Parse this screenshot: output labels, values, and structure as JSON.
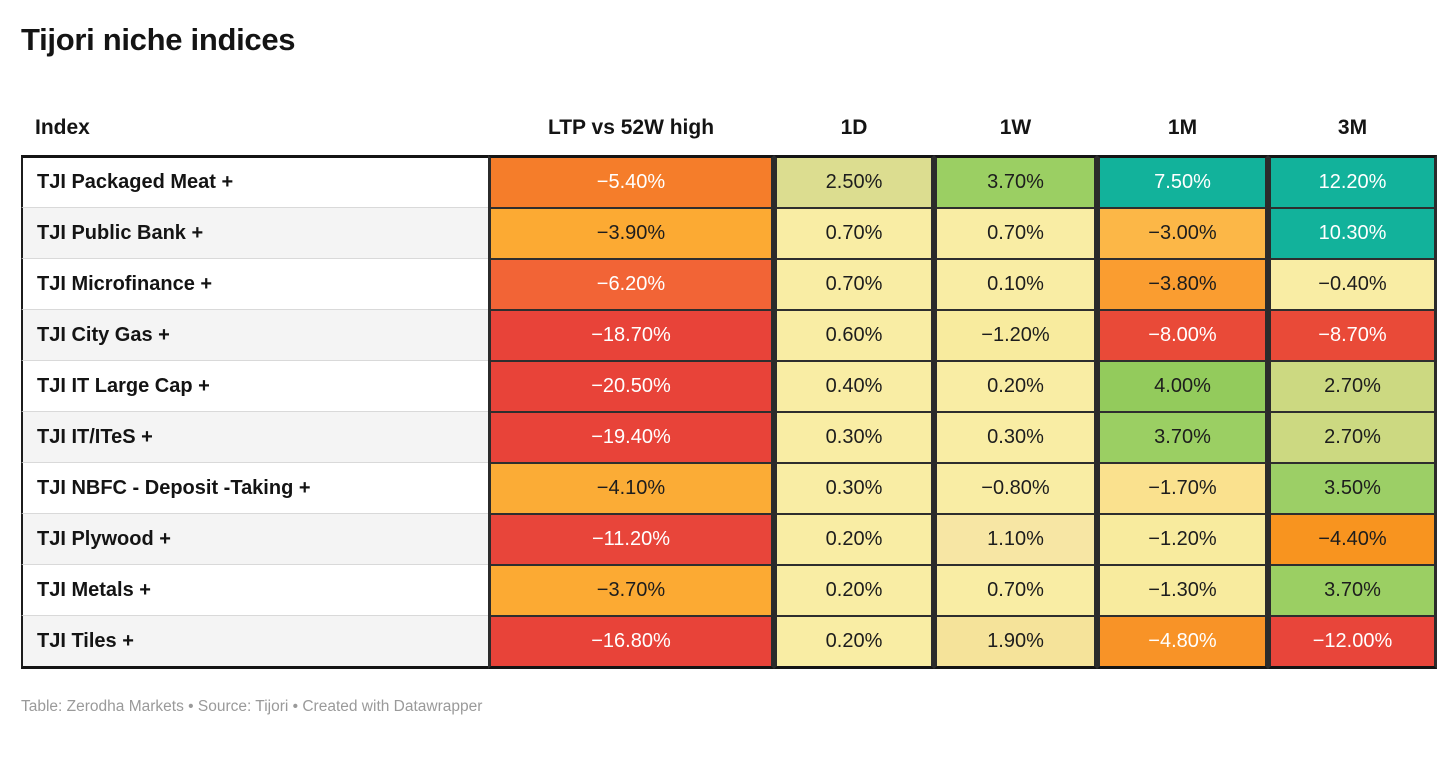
{
  "title": "Tijori niche indices",
  "footer": {
    "credits": "Table: Zerodha Markets • Source: Tijori • Created with Datawrapper"
  },
  "table": {
    "headers": [
      {
        "label": "Index"
      },
      {
        "label": "LTP vs 52W high"
      },
      {
        "label": "1D"
      },
      {
        "label": "1W"
      },
      {
        "label": "1M"
      },
      {
        "label": "3M"
      }
    ],
    "rows": [
      {
        "index": "TJI Packaged Meat +",
        "cells": [
          {
            "v": "−5.40%",
            "bg": "#f57d2a",
            "fg": "#ffffff"
          },
          {
            "v": "2.50%",
            "bg": "#dcdd90",
            "fg": "#1d1d1d"
          },
          {
            "v": "3.70%",
            "bg": "#9bcf63",
            "fg": "#1d1d1d"
          },
          {
            "v": "7.50%",
            "bg": "#12b29b",
            "fg": "#ffffff"
          },
          {
            "v": "12.20%",
            "bg": "#12b29b",
            "fg": "#ffffff"
          }
        ]
      },
      {
        "index": "TJI Public Bank +",
        "cells": [
          {
            "v": "−3.90%",
            "bg": "#fcaa33",
            "fg": "#1d1d1d"
          },
          {
            "v": "0.70%",
            "bg": "#f9eda4",
            "fg": "#1d1d1d"
          },
          {
            "v": "0.70%",
            "bg": "#f9eda4",
            "fg": "#1d1d1d"
          },
          {
            "v": "−3.00%",
            "bg": "#fcb747",
            "fg": "#1d1d1d"
          },
          {
            "v": "10.30%",
            "bg": "#12b29b",
            "fg": "#ffffff"
          }
        ]
      },
      {
        "index": "TJI Microfinance +",
        "cells": [
          {
            "v": "−6.20%",
            "bg": "#f26436",
            "fg": "#ffffff"
          },
          {
            "v": "0.70%",
            "bg": "#f9eda4",
            "fg": "#1d1d1d"
          },
          {
            "v": "0.10%",
            "bg": "#f9eda4",
            "fg": "#1d1d1d"
          },
          {
            "v": "−3.80%",
            "bg": "#fa9d30",
            "fg": "#1d1d1d"
          },
          {
            "v": "−0.40%",
            "bg": "#f9eda4",
            "fg": "#1d1d1d"
          }
        ]
      },
      {
        "index": "TJI City Gas +",
        "cells": [
          {
            "v": "−18.70%",
            "bg": "#e84339",
            "fg": "#ffffff"
          },
          {
            "v": "0.60%",
            "bg": "#f9eda4",
            "fg": "#1d1d1d"
          },
          {
            "v": "−1.20%",
            "bg": "#f8eb9e",
            "fg": "#1d1d1d"
          },
          {
            "v": "−8.00%",
            "bg": "#e94a38",
            "fg": "#ffffff"
          },
          {
            "v": "−8.70%",
            "bg": "#e94a38",
            "fg": "#ffffff"
          }
        ]
      },
      {
        "index": "TJI IT Large Cap +",
        "cells": [
          {
            "v": "−20.50%",
            "bg": "#e84339",
            "fg": "#ffffff"
          },
          {
            "v": "0.40%",
            "bg": "#f9eda4",
            "fg": "#1d1d1d"
          },
          {
            "v": "0.20%",
            "bg": "#f9eda4",
            "fg": "#1d1d1d"
          },
          {
            "v": "4.00%",
            "bg": "#93cb5c",
            "fg": "#1d1d1d"
          },
          {
            "v": "2.70%",
            "bg": "#ccd981",
            "fg": "#1d1d1d"
          }
        ]
      },
      {
        "index": "TJI IT/ITeS +",
        "cells": [
          {
            "v": "−19.40%",
            "bg": "#e84339",
            "fg": "#ffffff"
          },
          {
            "v": "0.30%",
            "bg": "#f9eda4",
            "fg": "#1d1d1d"
          },
          {
            "v": "0.30%",
            "bg": "#f9eda4",
            "fg": "#1d1d1d"
          },
          {
            "v": "3.70%",
            "bg": "#9bcf63",
            "fg": "#1d1d1d"
          },
          {
            "v": "2.70%",
            "bg": "#ccd981",
            "fg": "#1d1d1d"
          }
        ]
      },
      {
        "index": "TJI NBFC - Deposit -Taking +",
        "cells": [
          {
            "v": "−4.10%",
            "bg": "#fbac36",
            "fg": "#1d1d1d"
          },
          {
            "v": "0.30%",
            "bg": "#f9eda4",
            "fg": "#1d1d1d"
          },
          {
            "v": "−0.80%",
            "bg": "#f9eda4",
            "fg": "#1d1d1d"
          },
          {
            "v": "−1.70%",
            "bg": "#fae18e",
            "fg": "#1d1d1d"
          },
          {
            "v": "3.50%",
            "bg": "#9ccf66",
            "fg": "#1d1d1d"
          }
        ]
      },
      {
        "index": "TJI Plywood +",
        "cells": [
          {
            "v": "−11.20%",
            "bg": "#e8453a",
            "fg": "#ffffff"
          },
          {
            "v": "0.20%",
            "bg": "#f9eda4",
            "fg": "#1d1d1d"
          },
          {
            "v": "1.10%",
            "bg": "#f7e6a4",
            "fg": "#1d1d1d"
          },
          {
            "v": "−1.20%",
            "bg": "#f8eb9e",
            "fg": "#1d1d1d"
          },
          {
            "v": "−4.40%",
            "bg": "#f8941f",
            "fg": "#1d1d1d"
          }
        ]
      },
      {
        "index": "TJI Metals +",
        "cells": [
          {
            "v": "−3.70%",
            "bg": "#fcaa33",
            "fg": "#1d1d1d"
          },
          {
            "v": "0.20%",
            "bg": "#f9eda4",
            "fg": "#1d1d1d"
          },
          {
            "v": "0.70%",
            "bg": "#f9eda4",
            "fg": "#1d1d1d"
          },
          {
            "v": "−1.30%",
            "bg": "#f8eb9e",
            "fg": "#1d1d1d"
          },
          {
            "v": "3.70%",
            "bg": "#9bcf63",
            "fg": "#1d1d1d"
          }
        ]
      },
      {
        "index": "TJI Tiles +",
        "cells": [
          {
            "v": "−16.80%",
            "bg": "#e84339",
            "fg": "#ffffff"
          },
          {
            "v": "0.20%",
            "bg": "#f9eda4",
            "fg": "#1d1d1d"
          },
          {
            "v": "1.90%",
            "bg": "#f5e39a",
            "fg": "#1d1d1d"
          },
          {
            "v": "−4.80%",
            "bg": "#f89327",
            "fg": "#ffffff"
          },
          {
            "v": "−12.00%",
            "bg": "#e8453a",
            "fg": "#ffffff"
          }
        ]
      }
    ]
  },
  "chart_data": {
    "type": "table",
    "title": "Tijori niche indices",
    "columns": [
      "Index",
      "LTP vs 52W high",
      "1D",
      "1W",
      "1M",
      "3M"
    ],
    "value_unit": "percent",
    "rows": [
      [
        "TJI Packaged Meat +",
        -5.4,
        2.5,
        3.7,
        7.5,
        12.2
      ],
      [
        "TJI Public Bank +",
        -3.9,
        0.7,
        0.7,
        -3.0,
        10.3
      ],
      [
        "TJI Microfinance +",
        -6.2,
        0.7,
        0.1,
        -3.8,
        -0.4
      ],
      [
        "TJI City Gas +",
        -18.7,
        0.6,
        -1.2,
        -8.0,
        -8.7
      ],
      [
        "TJI IT Large Cap +",
        -20.5,
        0.4,
        0.2,
        4.0,
        2.7
      ],
      [
        "TJI IT/ITeS +",
        -19.4,
        0.3,
        0.3,
        3.7,
        2.7
      ],
      [
        "TJI NBFC - Deposit -Taking +",
        -4.1,
        0.3,
        -0.8,
        -1.7,
        3.5
      ],
      [
        "TJI Plywood +",
        -11.2,
        0.2,
        1.1,
        -1.2,
        -4.4
      ],
      [
        "TJI Metals +",
        -3.7,
        0.2,
        0.7,
        -1.3,
        3.7
      ],
      [
        "TJI Tiles +",
        -16.8,
        0.2,
        1.9,
        -4.8,
        -12.0
      ]
    ],
    "color_scale": "red-yellow-green-teal heatmap",
    "legend_position": "none",
    "footer": "Table: Zerodha Markets • Source: Tijori • Created with Datawrapper"
  }
}
